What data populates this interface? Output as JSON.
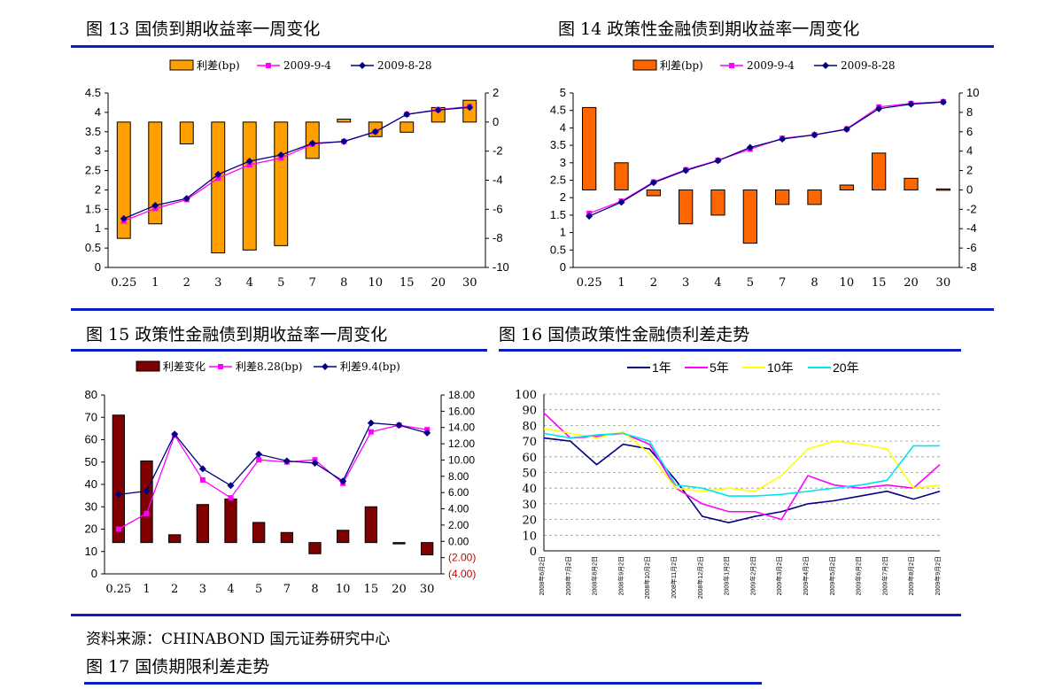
{
  "titles": {
    "fig13": "图 13 国债到期收益率一周变化",
    "fig14": "图 14 政策性金融债到期收益率一周变化",
    "fig15": "图 15 政策性金融债到期收益率一周变化",
    "fig16": "图 16 国债政策性金融债利差走势",
    "fig17": "图 17 国债期限利差走势"
  },
  "source": "资料来源：CHINABOND 国元证券研究中心",
  "colors": {
    "rule": "#0a1fbf",
    "orange": "#ff9f00",
    "deep_orange": "#ff6600",
    "maroon": "#800000",
    "magenta": "#ff00ff",
    "navy": "#000080",
    "red_label": "#cc0000",
    "yellow": "#ffff00",
    "cyan": "#00e5ee"
  },
  "chart_data": [
    {
      "id": "fig13",
      "type": "bar+line",
      "categories": [
        "0.25",
        "1",
        "2",
        "3",
        "4",
        "5",
        "7",
        "8",
        "10",
        "15",
        "20",
        "30"
      ],
      "left_axis": {
        "min": 0,
        "max": 4.5,
        "step": 0.5,
        "ticks": [
          "0",
          "0.5",
          "1",
          "1.5",
          "2",
          "2.5",
          "3",
          "3.5",
          "4",
          "4.5"
        ]
      },
      "right_axis": {
        "min": -10,
        "max": 2,
        "step": 2,
        "ticks": [
          "-10",
          "-8",
          "-6",
          "-4",
          "-2",
          "0",
          "2"
        ]
      },
      "bars": {
        "name": "利差(bp)",
        "axis": "right",
        "values": [
          -8,
          -7,
          -1.5,
          -9,
          -8.8,
          -8.5,
          -2.5,
          0.2,
          -1,
          -0.7,
          1,
          1.5
        ]
      },
      "lines": [
        {
          "name": "2009-9-4",
          "axis": "left",
          "values": [
            1.2,
            1.52,
            1.75,
            2.3,
            2.65,
            2.82,
            3.18,
            3.25,
            3.5,
            3.95,
            4.07,
            4.15
          ]
        },
        {
          "name": "2009-8-28",
          "axis": "left",
          "values": [
            1.26,
            1.6,
            1.78,
            2.4,
            2.74,
            2.9,
            3.2,
            3.25,
            3.5,
            3.95,
            4.06,
            4.13
          ]
        }
      ],
      "legend": [
        "利差(bp)",
        "2009-9-4",
        "2009-8-28"
      ]
    },
    {
      "id": "fig14",
      "type": "bar+line",
      "categories": [
        "0.25",
        "1",
        "2",
        "3",
        "4",
        "5",
        "7",
        "8",
        "10",
        "15",
        "20",
        "30"
      ],
      "left_axis": {
        "min": 0,
        "max": 5,
        "step": 0.5,
        "ticks": [
          "0",
          "0.5",
          "1",
          "1.5",
          "2",
          "2.5",
          "3",
          "3.5",
          "4",
          "4.5",
          "5"
        ]
      },
      "right_axis": {
        "min": -8,
        "max": 10,
        "step": 2,
        "ticks": [
          "-8",
          "-6",
          "-4",
          "-2",
          "0",
          "2",
          "4",
          "6",
          "8",
          "10"
        ]
      },
      "bars": {
        "name": "利差(bp)",
        "axis": "right",
        "values": [
          8.5,
          2.8,
          -0.6,
          -3.5,
          -2.6,
          -5.5,
          -1.5,
          -1.5,
          0.5,
          3.8,
          1.2,
          0.1
        ]
      },
      "lines": [
        {
          "name": "2009-9-4",
          "axis": "left",
          "values": [
            1.55,
            1.9,
            2.45,
            2.8,
            3.07,
            3.39,
            3.7,
            3.8,
            3.97,
            4.6,
            4.7,
            4.75
          ]
        },
        {
          "name": "2009-8-28",
          "axis": "left",
          "values": [
            1.47,
            1.87,
            2.43,
            2.78,
            3.06,
            3.44,
            3.68,
            3.8,
            3.96,
            4.55,
            4.68,
            4.74
          ]
        }
      ],
      "legend": [
        "利差(bp)",
        "2009-9-4",
        "2009-8-28"
      ]
    },
    {
      "id": "fig15",
      "type": "bar+line",
      "categories": [
        "0.25",
        "1",
        "2",
        "3",
        "4",
        "5",
        "7",
        "8",
        "10",
        "15",
        "20",
        "30"
      ],
      "left_axis": {
        "min": 0,
        "max": 80,
        "step": 10,
        "ticks": [
          "0",
          "10",
          "20",
          "30",
          "40",
          "50",
          "60",
          "70",
          "80"
        ]
      },
      "right_axis": {
        "min": -4,
        "max": 18,
        "step": 2,
        "ticks": [
          "(4.00)",
          "(2.00)",
          "0.00",
          "2.00",
          "4.00",
          "6.00",
          "8.00",
          "10.00",
          "12.00",
          "14.00",
          "16.00",
          "18.00"
        ]
      },
      "bars": {
        "name": "利差变化",
        "axis": "left",
        "values": [
          71,
          50.5,
          17.5,
          31,
          33.5,
          23,
          18.5,
          9,
          19.5,
          30,
          14,
          8.5
        ]
      },
      "lines": [
        {
          "name": "利差8.28(bp)",
          "axis": "left",
          "values": [
            20,
            27,
            62,
            42,
            34,
            51,
            50,
            51,
            40.5,
            63.5,
            66.5,
            64.5
          ]
        },
        {
          "name": "利差9.4(bp)",
          "axis": "left",
          "values": [
            35.5,
            37,
            62.5,
            47,
            39.5,
            53.5,
            50.5,
            49.5,
            41.5,
            67.5,
            66.5,
            63
          ]
        }
      ],
      "legend": [
        "利差变化",
        "利差8.28(bp)",
        "利差9.4(bp)"
      ]
    },
    {
      "id": "fig16",
      "type": "line",
      "x": [
        "2008年6月2日",
        "2008年7月2日",
        "2008年8月2日",
        "2008年9月2日",
        "2008年10月2日",
        "2008年11月2日",
        "2008年12月2日",
        "2009年1月2日",
        "2009年2月2日",
        "2009年3月2日",
        "2009年4月2日",
        "2009年5月2日",
        "2009年6月2日",
        "2009年7月2日",
        "2009年8月2日",
        "2009年9月2日"
      ],
      "y_axis": {
        "min": 0,
        "max": 100,
        "step": 10,
        "ticks": [
          "0",
          "10",
          "20",
          "30",
          "40",
          "50",
          "60",
          "70",
          "80",
          "90",
          "100"
        ]
      },
      "series": [
        {
          "name": "1年",
          "values": [
            72,
            70,
            55,
            68,
            65,
            45,
            22,
            18,
            22,
            25,
            30,
            32,
            35,
            38,
            33,
            38
          ]
        },
        {
          "name": "5年",
          "values": [
            88,
            72,
            73,
            75,
            68,
            40,
            30,
            25,
            25,
            20,
            48,
            42,
            40,
            42,
            40,
            55
          ]
        },
        {
          "name": "10年",
          "values": [
            78,
            75,
            72,
            76,
            62,
            40,
            38,
            40,
            38,
            48,
            65,
            70,
            68,
            65,
            40,
            42
          ]
        },
        {
          "name": "20年",
          "values": [
            75,
            72,
            74,
            75,
            70,
            42,
            40,
            35,
            35,
            36,
            38,
            40,
            42,
            45,
            67,
            67
          ]
        }
      ],
      "legend": [
        "1年",
        "5年",
        "10年",
        "20年"
      ]
    }
  ]
}
